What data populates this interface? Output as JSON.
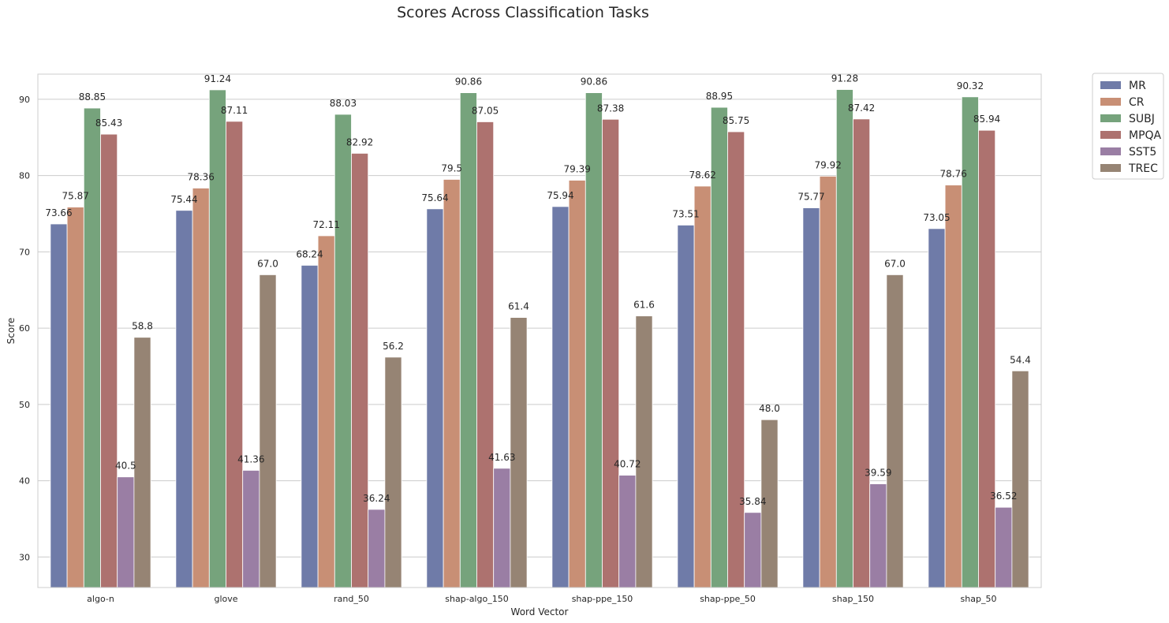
{
  "chart_data": {
    "type": "bar",
    "title": "Scores Across Classification Tasks",
    "xlabel": "Word Vector",
    "ylabel": "Score",
    "ylim": [
      26,
      93.3
    ],
    "yticks": [
      30,
      40,
      50,
      60,
      70,
      80,
      90
    ],
    "grid": true,
    "legend_position": "outside-top-right",
    "categories": [
      "algo-n",
      "glove",
      "rand_50",
      "shap-algo_150",
      "shap-ppe_150",
      "shap-ppe_50",
      "shap_150",
      "shap_50"
    ],
    "series": [
      {
        "name": "MR",
        "color": "#6f7ba8",
        "values": [
          73.66,
          75.44,
          68.24,
          75.64,
          75.94,
          73.51,
          75.77,
          73.05
        ]
      },
      {
        "name": "CR",
        "color": "#c88f75",
        "values": [
          75.87,
          78.36,
          72.11,
          79.5,
          79.39,
          78.62,
          79.92,
          78.76
        ]
      },
      {
        "name": "SUBJ",
        "color": "#76a37c",
        "values": [
          88.85,
          91.24,
          88.03,
          90.86,
          90.86,
          88.95,
          91.28,
          90.32
        ]
      },
      {
        "name": "MPQA",
        "color": "#ad726f",
        "values": [
          85.43,
          87.11,
          82.92,
          87.05,
          87.38,
          85.75,
          87.42,
          85.94
        ]
      },
      {
        "name": "SST5",
        "color": "#9a7ea4",
        "values": [
          40.5,
          41.36,
          36.24,
          41.63,
          40.72,
          35.84,
          39.59,
          36.52
        ]
      },
      {
        "name": "TREC",
        "color": "#968474",
        "values": [
          58.8,
          67.0,
          56.2,
          61.4,
          61.6,
          48.0,
          67.0,
          54.4
        ]
      }
    ],
    "data_labels": [
      [
        "73.66",
        "75.44",
        "68.24",
        "75.64",
        "75.94",
        "73.51",
        "75.77",
        "73.05"
      ],
      [
        "75.87",
        "78.36",
        "72.11",
        "79.5",
        "79.39",
        "78.62",
        "79.92",
        "78.76"
      ],
      [
        "88.85",
        "91.24",
        "88.03",
        "90.86",
        "90.86",
        "88.95",
        "91.28",
        "90.32"
      ],
      [
        "85.43",
        "87.11",
        "82.92",
        "87.05",
        "87.38",
        "85.75",
        "87.42",
        "85.94"
      ],
      [
        "40.5",
        "41.36",
        "36.24",
        "41.63",
        "40.72",
        "35.84",
        "39.59",
        "36.52"
      ],
      [
        "58.8",
        "67.0",
        "56.2",
        "61.4",
        "61.6",
        "48.0",
        "67.0",
        "54.4"
      ]
    ]
  }
}
